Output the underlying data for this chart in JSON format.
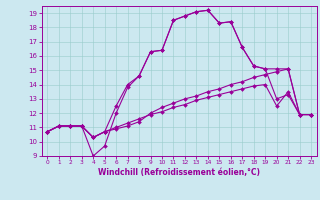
{
  "title": "",
  "xlabel": "Windchill (Refroidissement éolien,°C)",
  "bg_color": "#cce8f0",
  "line_color": "#990099",
  "grid_color": "#99cccc",
  "xlim": [
    -0.5,
    23.5
  ],
  "ylim": [
    9.0,
    19.5
  ],
  "xticks": [
    0,
    1,
    2,
    3,
    4,
    5,
    6,
    7,
    8,
    9,
    10,
    11,
    12,
    13,
    14,
    15,
    16,
    17,
    18,
    19,
    20,
    21,
    22,
    23
  ],
  "yticks": [
    9,
    10,
    11,
    12,
    13,
    14,
    15,
    16,
    17,
    18,
    19
  ],
  "line1_x": [
    0,
    1,
    2,
    3,
    4,
    5,
    6,
    7,
    8,
    9,
    10,
    11,
    12,
    13,
    14,
    15,
    16,
    17,
    18,
    19,
    20,
    21,
    22,
    23
  ],
  "line1_y": [
    10.7,
    11.1,
    11.1,
    11.1,
    10.3,
    10.7,
    11.0,
    11.3,
    11.6,
    11.9,
    12.1,
    12.4,
    12.6,
    12.9,
    13.1,
    13.3,
    13.5,
    13.7,
    13.9,
    14.0,
    12.5,
    13.5,
    11.9,
    11.9
  ],
  "line2_x": [
    0,
    1,
    2,
    3,
    4,
    5,
    6,
    7,
    8,
    9,
    10,
    11,
    12,
    13,
    14,
    15,
    16,
    17,
    18,
    19,
    20,
    21,
    22,
    23
  ],
  "line2_y": [
    10.7,
    11.1,
    11.1,
    11.1,
    10.3,
    10.7,
    10.9,
    11.1,
    11.4,
    12.0,
    12.4,
    12.7,
    13.0,
    13.2,
    13.5,
    13.7,
    14.0,
    14.2,
    14.5,
    14.7,
    14.9,
    15.1,
    11.9,
    11.9
  ],
  "line3_x": [
    0,
    1,
    2,
    3,
    4,
    5,
    6,
    7,
    8,
    9,
    10,
    11,
    12,
    13,
    14,
    15,
    16,
    17,
    18,
    19,
    20,
    21,
    22,
    23
  ],
  "line3_y": [
    10.7,
    11.1,
    11.1,
    11.1,
    10.3,
    10.7,
    12.5,
    14.0,
    14.6,
    16.3,
    16.4,
    18.5,
    18.8,
    19.1,
    19.2,
    18.3,
    18.4,
    16.6,
    15.3,
    15.1,
    13.0,
    13.3,
    11.9,
    11.9
  ],
  "line4_x": [
    0,
    1,
    2,
    3,
    4,
    5,
    6,
    7,
    8,
    9,
    10,
    11,
    12,
    13,
    14,
    15,
    16,
    17,
    18,
    19,
    20,
    21,
    22,
    23
  ],
  "line4_y": [
    10.7,
    11.1,
    11.1,
    11.1,
    9.0,
    9.7,
    12.0,
    13.8,
    14.6,
    16.3,
    16.4,
    18.5,
    18.8,
    19.1,
    19.2,
    18.3,
    18.4,
    16.6,
    15.3,
    15.1,
    15.1,
    15.1,
    11.9,
    11.9
  ],
  "xlabel_fontsize": 5.5,
  "tick_fontsize": 5.0,
  "marker_size": 2.0,
  "line_width": 0.8
}
